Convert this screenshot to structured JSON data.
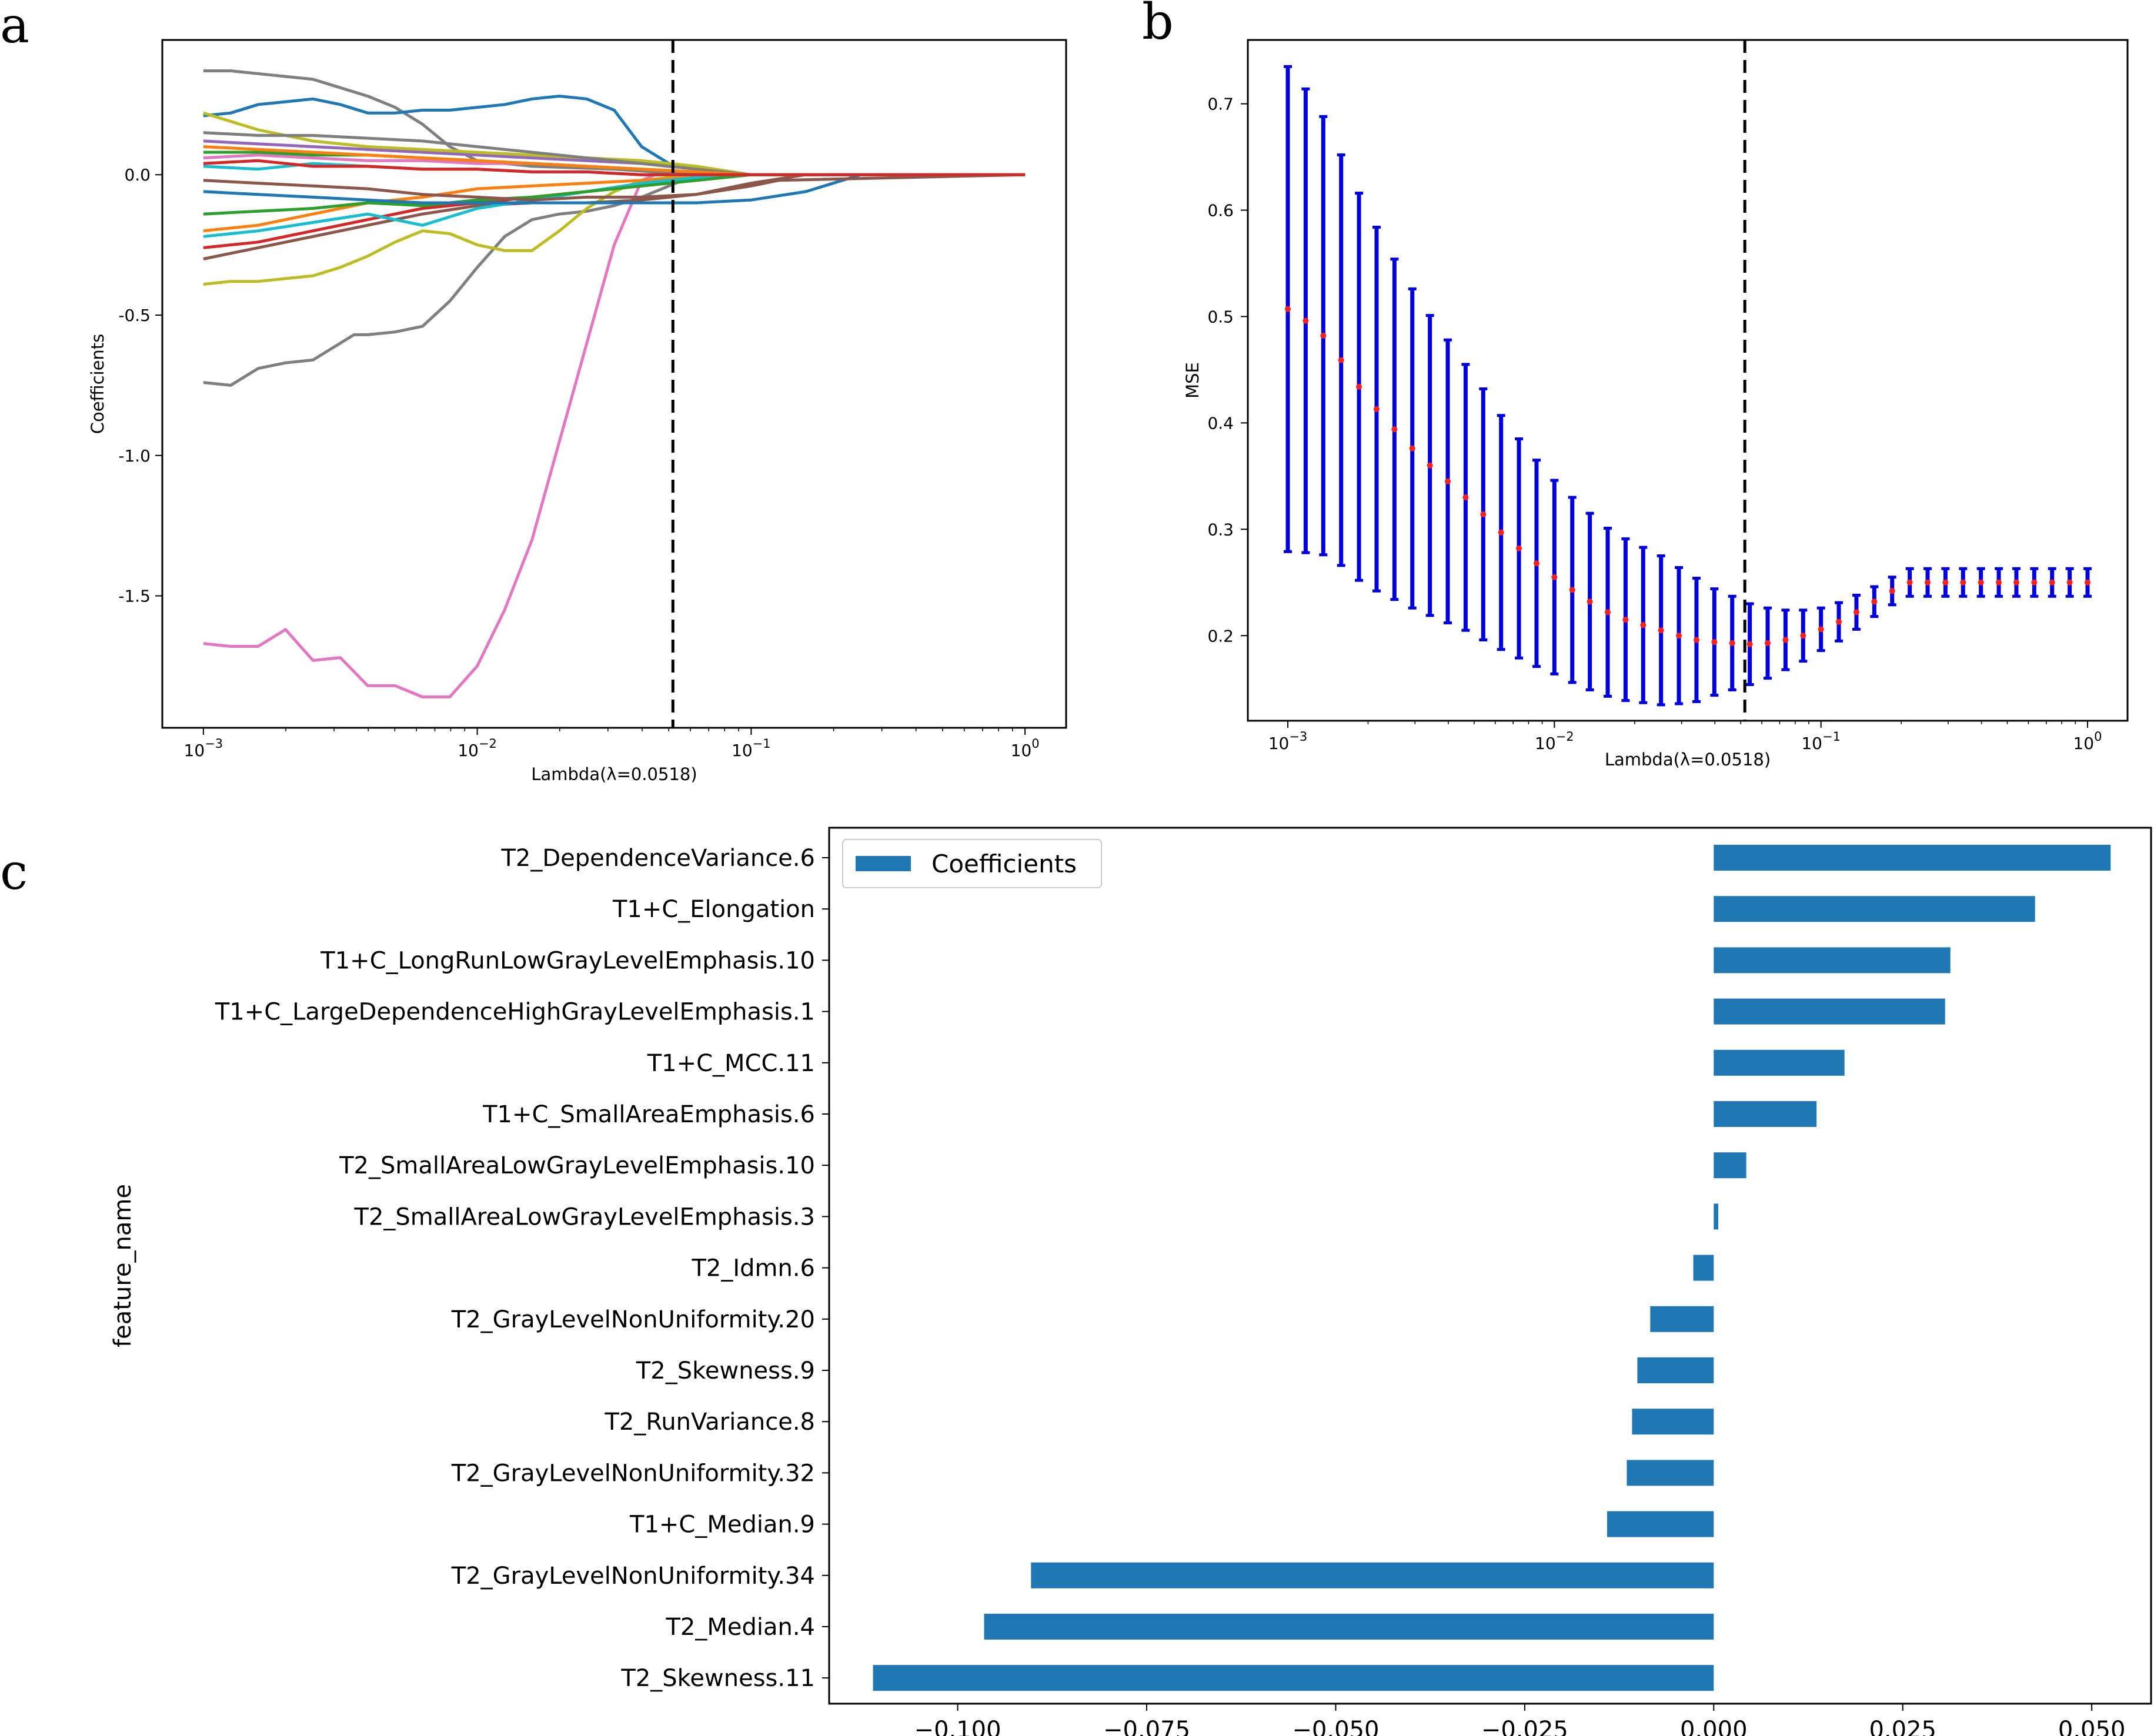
{
  "panel_labels": {
    "a": "a",
    "b": "b",
    "c": "c"
  },
  "lambda_label": "Lambda(λ=0.0518)",
  "chart_data": [
    {
      "id": "a",
      "type": "line",
      "title": "",
      "xlabel": "Lambda(λ=0.0518)",
      "ylabel": "Coefficients",
      "xscale": "log",
      "xlim_log10": [
        -3.15,
        0.15
      ],
      "ylim": [
        -1.97,
        0.48
      ],
      "yticks": [
        0.0,
        -0.5,
        -1.0,
        -1.5
      ],
      "ytick_labels": [
        "0.0",
        "-0.5",
        "-1.0",
        "-1.5"
      ],
      "xtick_exponents": [
        -3,
        -2,
        -1,
        0
      ],
      "selected_lambda": 0.0518,
      "series": [
        {
          "name": "pink",
          "color": "#e377c2",
          "x_log10": [
            -3,
            -2.9,
            -2.8,
            -2.7,
            -2.6,
            -2.5,
            -2.4,
            -2.3,
            -2.2,
            -2.1,
            -2.0,
            -1.9,
            -1.8,
            -1.7,
            -1.6,
            -1.5,
            -1.4,
            -1.35,
            -1.3,
            -1.25,
            -1.2,
            -1.0,
            0
          ],
          "y": [
            -1.67,
            -1.68,
            -1.68,
            -1.62,
            -1.73,
            -1.72,
            -1.82,
            -1.82,
            -1.86,
            -1.86,
            -1.75,
            -1.55,
            -1.3,
            -0.95,
            -0.6,
            -0.25,
            -0.02,
            0.0,
            0.0,
            0.0,
            0.0,
            0.0,
            0.0
          ]
        },
        {
          "name": "gray-a",
          "color": "#7f7f7f",
          "x_log10": [
            -3,
            -2.9,
            -2.8,
            -2.7,
            -2.6,
            -2.5,
            -2.45,
            -2.4,
            -2.3,
            -2.2,
            -2.1,
            -2.0,
            -1.9,
            -1.8,
            -1.7,
            -1.6,
            -1.5,
            -1.4,
            -1.2,
            0
          ],
          "y": [
            -0.74,
            -0.75,
            -0.69,
            -0.67,
            -0.66,
            -0.6,
            -0.57,
            -0.57,
            -0.56,
            -0.54,
            -0.45,
            -0.33,
            -0.22,
            -0.16,
            -0.14,
            -0.13,
            -0.11,
            -0.08,
            0.0,
            0.0
          ]
        },
        {
          "name": "gray-b",
          "color": "#7f7f7f",
          "x_log10": [
            -3,
            -2.9,
            -2.8,
            -2.7,
            -2.6,
            -2.5,
            -2.4,
            -2.3,
            -2.2,
            -2.1,
            -2.0,
            -1.8,
            -1.5,
            -1.2,
            0
          ],
          "y": [
            0.37,
            0.37,
            0.36,
            0.35,
            0.34,
            0.31,
            0.28,
            0.24,
            0.18,
            0.1,
            0.05,
            0.03,
            0.02,
            0.0,
            0.0
          ]
        },
        {
          "name": "blue-top",
          "color": "#1f77b4",
          "x_log10": [
            -3,
            -2.9,
            -2.8,
            -2.7,
            -2.6,
            -2.5,
            -2.4,
            -2.3,
            -2.2,
            -2.1,
            -2.0,
            -1.9,
            -1.8,
            -1.7,
            -1.6,
            -1.5,
            -1.4,
            -1.3,
            -1.2,
            -1.1,
            0
          ],
          "y": [
            0.21,
            0.22,
            0.25,
            0.26,
            0.27,
            0.25,
            0.22,
            0.22,
            0.23,
            0.23,
            0.24,
            0.25,
            0.27,
            0.28,
            0.27,
            0.23,
            0.1,
            0.04,
            0.02,
            0.0,
            0.0
          ]
        },
        {
          "name": "olive",
          "color": "#bcbd22",
          "x_log10": [
            -3,
            -2.9,
            -2.8,
            -2.7,
            -2.6,
            -2.5,
            -2.4,
            -2.3,
            -2.2,
            -2.1,
            -2.0,
            -1.9,
            -1.8,
            -1.7,
            -1.6,
            -1.5,
            -1.4,
            -1.2,
            0
          ],
          "y": [
            -0.39,
            -0.38,
            -0.38,
            -0.37,
            -0.36,
            -0.33,
            -0.29,
            -0.24,
            -0.2,
            -0.21,
            -0.25,
            -0.27,
            -0.27,
            -0.2,
            -0.12,
            -0.06,
            -0.02,
            0.0,
            0.0
          ]
        },
        {
          "name": "brown",
          "color": "#8c564b",
          "x_log10": [
            -3,
            -2.9,
            -2.8,
            -2.6,
            -2.4,
            -2.2,
            -2.0,
            -1.8,
            -1.6,
            -1.4,
            -1.2,
            -1.0,
            -0.8,
            0
          ],
          "y": [
            -0.3,
            -0.28,
            -0.26,
            -0.22,
            -0.18,
            -0.14,
            -0.11,
            -0.1,
            -0.1,
            -0.09,
            -0.07,
            -0.03,
            0.0,
            0.0
          ]
        },
        {
          "name": "red",
          "color": "#d62728",
          "x_log10": [
            -3,
            -2.8,
            -2.6,
            -2.4,
            -2.2,
            -2.0,
            -1.8,
            -1.6,
            -1.4,
            -1.2,
            -1.0,
            0
          ],
          "y": [
            -0.26,
            -0.24,
            -0.2,
            -0.16,
            -0.12,
            -0.1,
            -0.08,
            -0.06,
            -0.04,
            -0.02,
            0.0,
            0.0
          ]
        },
        {
          "name": "orange",
          "color": "#ff7f0e",
          "x_log10": [
            -3,
            -2.8,
            -2.6,
            -2.4,
            -2.2,
            -2.0,
            -1.8,
            -1.6,
            -1.4,
            -1.2,
            -1.0,
            0
          ],
          "y": [
            -0.2,
            -0.18,
            -0.14,
            -0.1,
            -0.08,
            -0.05,
            -0.04,
            -0.03,
            -0.02,
            -0.01,
            0.0,
            0.0
          ]
        },
        {
          "name": "cyan",
          "color": "#17becf",
          "x_log10": [
            -3,
            -2.8,
            -2.6,
            -2.4,
            -2.2,
            -2.0,
            -1.8,
            -1.6,
            -1.4,
            -1.2,
            -1.0,
            0
          ],
          "y": [
            -0.22,
            -0.2,
            -0.17,
            -0.14,
            -0.18,
            -0.12,
            -0.09,
            -0.06,
            -0.03,
            -0.01,
            0.0,
            0.0
          ]
        },
        {
          "name": "green",
          "color": "#2ca02c",
          "x_log10": [
            -3,
            -2.8,
            -2.6,
            -2.4,
            -2.2,
            -2.0,
            -1.8,
            -1.6,
            -1.4,
            -1.2,
            -1.0,
            0
          ],
          "y": [
            -0.14,
            -0.13,
            -0.12,
            -0.1,
            -0.11,
            -0.09,
            -0.08,
            -0.06,
            -0.04,
            -0.02,
            0.0,
            0.0
          ]
        },
        {
          "name": "purple",
          "color": "#9467bd",
          "x_log10": [
            -3,
            -2.8,
            -2.6,
            -2.4,
            -2.2,
            -2.0,
            -1.8,
            -1.6,
            -1.4,
            -1.2,
            -1.0,
            0
          ],
          "y": [
            0.12,
            0.11,
            0.1,
            0.09,
            0.08,
            0.07,
            0.06,
            0.05,
            0.04,
            0.02,
            0.0,
            0.0
          ]
        },
        {
          "name": "olive-b",
          "color": "#bcbd22",
          "x_log10": [
            -3,
            -2.8,
            -2.6,
            -2.4,
            -2.2,
            -2.0,
            -1.8,
            -1.6,
            -1.4,
            -1.2,
            -1.0,
            0
          ],
          "y": [
            0.22,
            0.16,
            0.12,
            0.1,
            0.09,
            0.08,
            0.07,
            0.06,
            0.05,
            0.03,
            0.0,
            0.0
          ]
        },
        {
          "name": "blue-b",
          "color": "#1f77b4",
          "x_log10": [
            -3,
            -2.8,
            -2.6,
            -2.4,
            -2.2,
            -2.0,
            -1.8,
            -1.6,
            -1.4,
            -1.2,
            -1.0,
            -0.8,
            -0.6,
            0
          ],
          "y": [
            -0.06,
            -0.07,
            -0.08,
            -0.09,
            -0.1,
            -0.1,
            -0.1,
            -0.1,
            -0.1,
            -0.1,
            -0.09,
            -0.06,
            0.0,
            0.0
          ]
        },
        {
          "name": "pink-b",
          "color": "#e377c2",
          "x_log10": [
            -3,
            -2.8,
            -2.6,
            -2.4,
            -2.2,
            -2.0,
            -1.8,
            -1.6,
            -1.4,
            -1.2,
            -1.0,
            0
          ],
          "y": [
            0.06,
            0.07,
            0.06,
            0.05,
            0.05,
            0.04,
            0.04,
            0.03,
            0.02,
            0.01,
            0.0,
            0.0
          ]
        },
        {
          "name": "gray-c",
          "color": "#7f7f7f",
          "x_log10": [
            -3,
            -2.8,
            -2.6,
            -2.4,
            -2.2,
            -2.0,
            -1.8,
            -1.6,
            -1.4,
            -1.2,
            -1.0,
            0
          ],
          "y": [
            0.15,
            0.14,
            0.14,
            0.13,
            0.12,
            0.1,
            0.08,
            0.06,
            0.04,
            0.02,
            0.0,
            0.0
          ]
        },
        {
          "name": "green-b",
          "color": "#2ca02c",
          "x_log10": [
            -3,
            -2.8,
            -2.6,
            -2.4,
            -2.2,
            -2.0,
            -1.8,
            -1.6,
            -1.4,
            -1.2,
            -1.0,
            0
          ],
          "y": [
            0.08,
            0.08,
            0.07,
            0.07,
            0.06,
            0.05,
            0.04,
            0.03,
            0.02,
            0.01,
            0.0,
            0.0
          ]
        },
        {
          "name": "orange-b",
          "color": "#ff7f0e",
          "x_log10": [
            -3,
            -2.8,
            -2.6,
            -2.4,
            -2.2,
            -2.0,
            -1.8,
            -1.6,
            -1.4,
            -1.2,
            -1.0,
            0
          ],
          "y": [
            0.1,
            0.09,
            0.08,
            0.07,
            0.06,
            0.05,
            0.04,
            0.03,
            0.02,
            0.01,
            0.0,
            0.0
          ]
        },
        {
          "name": "brown-b",
          "color": "#8c564b",
          "x_log10": [
            -3,
            -2.8,
            -2.6,
            -2.4,
            -2.2,
            -2.0,
            -1.8,
            -1.6,
            -1.4,
            -1.2,
            -1.0,
            -0.9,
            0
          ],
          "y": [
            -0.02,
            -0.03,
            -0.04,
            -0.05,
            -0.07,
            -0.08,
            -0.09,
            -0.08,
            -0.08,
            -0.07,
            -0.04,
            -0.02,
            0.0
          ]
        },
        {
          "name": "cyan-b",
          "color": "#17becf",
          "x_log10": [
            -3,
            -2.8,
            -2.6,
            -2.4,
            -2.2,
            -2.0,
            -1.8,
            -1.6,
            -1.4,
            -1.2,
            -1.0,
            0
          ],
          "y": [
            0.03,
            0.02,
            0.04,
            0.03,
            0.02,
            0.02,
            0.01,
            0.01,
            0.0,
            0.0,
            0.0,
            0.0
          ]
        },
        {
          "name": "red-b",
          "color": "#d62728",
          "x_log10": [
            -3,
            -2.8,
            -2.6,
            -2.4,
            -2.2,
            -2.0,
            -1.8,
            -1.6,
            -1.4,
            -1.2,
            -1.0,
            0
          ],
          "y": [
            0.04,
            0.05,
            0.03,
            0.03,
            0.02,
            0.02,
            0.01,
            0.01,
            0.0,
            0.0,
            0.0,
            0.0
          ]
        }
      ]
    },
    {
      "id": "b",
      "type": "errorbar",
      "title": "",
      "xlabel": "Lambda(λ=0.0518)",
      "ylabel": "MSE",
      "xscale": "log",
      "xlim_log10": [
        -3.15,
        0.15
      ],
      "ylim": [
        0.12,
        0.76
      ],
      "yticks": [
        0.2,
        0.3,
        0.4,
        0.5,
        0.6,
        0.7
      ],
      "ytick_labels": [
        "0.2",
        "0.3",
        "0.4",
        "0.5",
        "0.6",
        "0.7"
      ],
      "xtick_exponents": [
        -3,
        -2,
        -1,
        0
      ],
      "selected_lambda": 0.0518,
      "mean_color": "#ff2020",
      "bar_color": "#0000dd",
      "x_log10": [
        -3.0,
        -2.933,
        -2.867,
        -2.8,
        -2.733,
        -2.667,
        -2.6,
        -2.533,
        -2.467,
        -2.4,
        -2.333,
        -2.267,
        -2.2,
        -2.133,
        -2.067,
        -2.0,
        -1.933,
        -1.867,
        -1.8,
        -1.733,
        -1.667,
        -1.6,
        -1.533,
        -1.467,
        -1.4,
        -1.333,
        -1.267,
        -1.2,
        -1.133,
        -1.067,
        -1.0,
        -0.933,
        -0.867,
        -0.8,
        -0.733,
        -0.667,
        -0.6,
        -0.533,
        -0.467,
        -0.4,
        -0.333,
        -0.267,
        -0.2,
        -0.133,
        -0.067,
        0.0
      ],
      "mean": [
        0.507,
        0.496,
        0.482,
        0.459,
        0.434,
        0.413,
        0.394,
        0.376,
        0.36,
        0.345,
        0.33,
        0.314,
        0.297,
        0.282,
        0.268,
        0.255,
        0.243,
        0.232,
        0.222,
        0.215,
        0.21,
        0.205,
        0.2,
        0.196,
        0.194,
        0.193,
        0.192,
        0.193,
        0.196,
        0.2,
        0.206,
        0.213,
        0.222,
        0.232,
        0.242,
        0.25,
        0.25,
        0.25,
        0.25,
        0.25,
        0.25,
        0.25,
        0.25,
        0.25,
        0.25,
        0.25
      ],
      "err": [
        0.228,
        0.218,
        0.206,
        0.193,
        0.182,
        0.171,
        0.16,
        0.15,
        0.141,
        0.133,
        0.125,
        0.118,
        0.11,
        0.103,
        0.097,
        0.091,
        0.087,
        0.083,
        0.079,
        0.076,
        0.073,
        0.07,
        0.064,
        0.058,
        0.05,
        0.044,
        0.038,
        0.033,
        0.028,
        0.024,
        0.02,
        0.018,
        0.016,
        0.014,
        0.013,
        0.013,
        0.013,
        0.013,
        0.013,
        0.013,
        0.013,
        0.013,
        0.013,
        0.013,
        0.013,
        0.013
      ]
    },
    {
      "id": "c",
      "type": "barh",
      "title": "",
      "xlabel": "",
      "ylabel": "feature_name",
      "xlim": [
        -0.117,
        0.058
      ],
      "xticks": [
        -0.1,
        -0.075,
        -0.05,
        -0.025,
        0.0,
        0.025,
        0.05
      ],
      "xtick_labels": [
        "−0.100",
        "−0.075",
        "−0.050",
        "−0.025",
        "0.000",
        "0.025",
        "0.050"
      ],
      "legend": {
        "label": "Coefficients",
        "position": "top-left"
      },
      "color": "#1f77b4",
      "categories": [
        "T2_DependenceVariance.6",
        "T1+C_Elongation",
        "T1+C_LongRunLowGrayLevelEmphasis.10",
        "T1+C_LargeDependenceHighGrayLevelEmphasis.1",
        "T1+C_MCC.11",
        "T1+C_SmallAreaEmphasis.6",
        "T2_SmallAreaLowGrayLevelEmphasis.10",
        "T2_SmallAreaLowGrayLevelEmphasis.3",
        "T2_Idmn.6",
        "T2_GrayLevelNonUniformity.20",
        "T2_Skewness.9",
        "T2_RunVariance.8",
        "T2_GrayLevelNonUniformity.32",
        "T1+C_Median.9",
        "T2_GrayLevelNonUniformity.34",
        "T2_Median.4",
        "T2_Skewness.11"
      ],
      "values": [
        0.0525,
        0.0425,
        0.0313,
        0.0306,
        0.0173,
        0.0136,
        0.0043,
        0.0006,
        -0.0027,
        -0.0084,
        -0.0101,
        -0.0108,
        -0.0115,
        -0.0141,
        -0.0903,
        -0.0965,
        -0.1112
      ]
    }
  ]
}
